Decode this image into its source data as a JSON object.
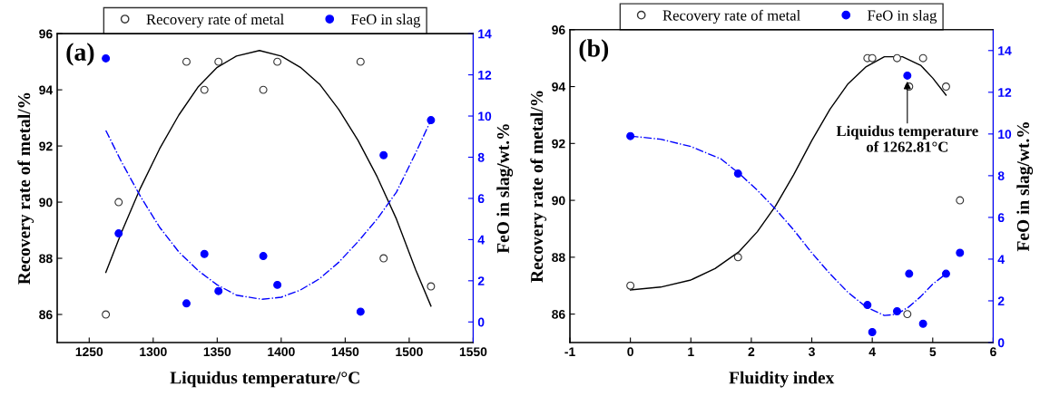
{
  "chart_data": [
    {
      "type": "scatter",
      "annotations": [
        "(a)"
      ],
      "xlabel": "Liquidus temperature/°C",
      "ylabel": "Recovery rate of metal/%",
      "y2label": "FeO in slag/wt.%",
      "xlim": [
        1225,
        1550
      ],
      "xticks": [
        1250,
        1300,
        1350,
        1400,
        1450,
        1500,
        1550
      ],
      "ylim": [
        85,
        96
      ],
      "yticks": [
        86,
        88,
        90,
        92,
        94,
        96
      ],
      "y2lim": [
        -1,
        14
      ],
      "y2ticks": [
        0,
        2,
        4,
        6,
        8,
        10,
        12,
        14
      ],
      "legend": "top",
      "grid": false,
      "series": [
        {
          "name": "Recovery rate of metal",
          "marker": "circle_open",
          "color": "#333333",
          "x": [
            1263,
            1273,
            1326,
            1340,
            1351,
            1386,
            1397,
            1462,
            1480,
            1517
          ],
          "values": [
            86,
            90,
            95,
            94,
            95,
            94,
            95,
            95,
            88,
            87
          ]
        },
        {
          "name": "FeO in slag",
          "marker": "circle",
          "axis": "y2",
          "color": "#0000ff",
          "x": [
            1263,
            1273,
            1326,
            1340,
            1351,
            1386,
            1397,
            1462,
            1480,
            1517
          ],
          "values": [
            12.8,
            4.3,
            0.9,
            3.3,
            1.5,
            3.2,
            1.8,
            0.5,
            8.1,
            9.8
          ]
        },
        {
          "type": "line",
          "line_style": "solid",
          "color": "#000000",
          "x": [
            1263,
            1275,
            1290,
            1305,
            1320,
            1335,
            1350,
            1365,
            1383,
            1400,
            1415,
            1430,
            1445,
            1460,
            1475,
            1490,
            1505,
            1517
          ],
          "values": [
            87.5,
            88.9,
            90.5,
            91.9,
            93.1,
            94.1,
            94.8,
            95.2,
            95.4,
            95.2,
            94.8,
            94.2,
            93.3,
            92.2,
            90.9,
            89.4,
            87.6,
            86.3
          ]
        },
        {
          "type": "line",
          "line_style": "dashdot",
          "axis": "y2",
          "color": "#0000ff",
          "x": [
            1263,
            1275,
            1290,
            1305,
            1320,
            1335,
            1350,
            1365,
            1385,
            1400,
            1415,
            1430,
            1445,
            1460,
            1475,
            1490,
            1505,
            1517
          ],
          "values": [
            9.3,
            7.8,
            6.1,
            4.6,
            3.4,
            2.5,
            1.8,
            1.3,
            1.1,
            1.2,
            1.55,
            2.1,
            2.9,
            3.9,
            5.0,
            6.3,
            8.2,
            9.8
          ]
        }
      ]
    },
    {
      "type": "scatter",
      "annotations": [
        "(b)",
        {
          "text": "Liquidus temperature\nof 1262.81°C",
          "x": 4.58,
          "y": 94.4
        }
      ],
      "xlabel": "Fluidity index",
      "ylabel": "Recovery rate of metal/%",
      "y2label": "FeO in slag/wt.%",
      "xlim": [
        -1,
        6
      ],
      "xticks": [
        -1,
        0,
        1,
        2,
        3,
        4,
        5,
        6
      ],
      "ylim": [
        85,
        96
      ],
      "yticks": [
        86,
        88,
        90,
        92,
        94,
        96
      ],
      "y2lim": [
        0,
        15
      ],
      "y2ticks": [
        0,
        2,
        4,
        6,
        8,
        10,
        12,
        14
      ],
      "legend": "top",
      "grid": false,
      "series": [
        {
          "name": "Recovery rate of metal",
          "marker": "circle_open",
          "color": "#333333",
          "x": [
            0,
            1.78,
            3.92,
            4.0,
            4.41,
            4.58,
            4.61,
            4.84,
            5.22,
            5.45
          ],
          "values": [
            87,
            88,
            95,
            95,
            95,
            86,
            94,
            95,
            94,
            90
          ]
        },
        {
          "name": "FeO in slag",
          "marker": "circle",
          "axis": "y2",
          "color": "#0000ff",
          "x": [
            0,
            1.78,
            3.92,
            4.0,
            4.41,
            4.58,
            4.61,
            4.84,
            5.22,
            5.45
          ],
          "values": [
            9.9,
            8.1,
            1.8,
            0.5,
            1.5,
            12.8,
            3.3,
            0.9,
            3.3,
            4.3
          ]
        },
        {
          "type": "line",
          "line_style": "solid",
          "color": "#000000",
          "x": [
            0,
            0.5,
            1,
            1.4,
            1.8,
            2.1,
            2.4,
            2.7,
            3.0,
            3.3,
            3.6,
            3.9,
            4.2,
            4.5,
            4.8,
            5.0,
            5.22
          ],
          "values": [
            86.85,
            86.95,
            87.2,
            87.6,
            88.2,
            88.9,
            89.8,
            90.9,
            92.1,
            93.2,
            94.1,
            94.7,
            95.05,
            95.05,
            94.75,
            94.3,
            93.7
          ]
        },
        {
          "type": "line",
          "line_style": "dashdot",
          "axis": "y2",
          "color": "#0000ff",
          "x": [
            0,
            0.5,
            1,
            1.5,
            1.8,
            2.1,
            2.4,
            2.7,
            3.0,
            3.3,
            3.6,
            3.9,
            4.2,
            4.4,
            4.6,
            4.8,
            5.0,
            5.22
          ],
          "values": [
            9.9,
            9.75,
            9.4,
            8.8,
            8.1,
            7.3,
            6.4,
            5.4,
            4.3,
            3.3,
            2.4,
            1.7,
            1.3,
            1.35,
            1.7,
            2.2,
            2.8,
            3.3
          ]
        }
      ]
    }
  ]
}
